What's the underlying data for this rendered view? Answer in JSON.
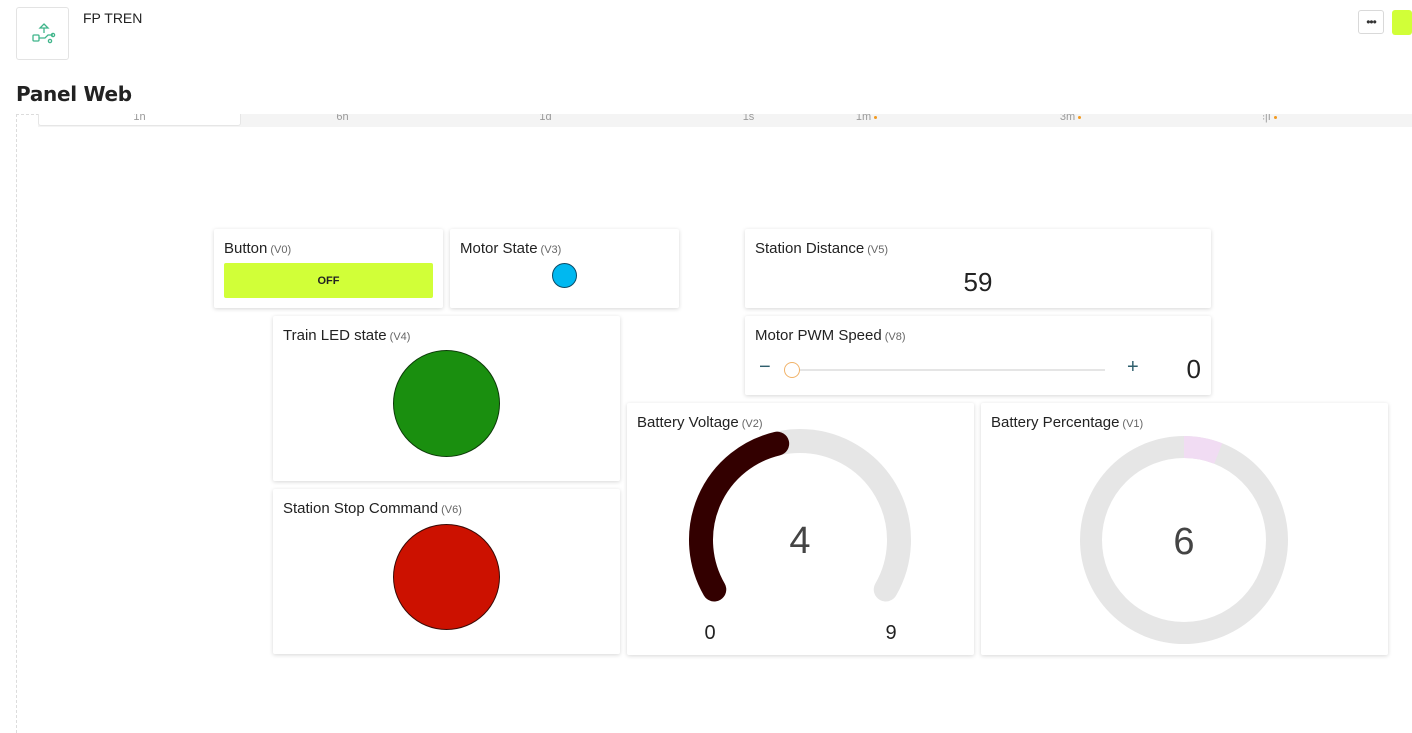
{
  "header": {
    "device_title": "FP TREN",
    "more_label": "•••",
    "page_title": "Panel Web"
  },
  "time_tabs": [
    {
      "label": "1h",
      "active": true,
      "dot": false
    },
    {
      "label": "6h",
      "active": false,
      "dot": false
    },
    {
      "label": "1d",
      "active": false,
      "dot": false
    },
    {
      "label": "1s",
      "active": false,
      "dot": false
    },
    {
      "label": "1m",
      "active": false,
      "dot": true
    },
    {
      "label": "3m",
      "active": false,
      "dot": true
    },
    {
      "label": "⫶|ı",
      "active": false,
      "dot": true
    }
  ],
  "widgets": {
    "button": {
      "title": "Button",
      "pin": "(V0)",
      "state_label": "OFF"
    },
    "motor_state": {
      "title": "Motor State",
      "pin": "(V3)",
      "color": "#00b8f0"
    },
    "station_distance": {
      "title": "Station Distance",
      "pin": "(V5)",
      "value": "59"
    },
    "train_led": {
      "title": "Train LED state",
      "pin": "(V4)",
      "color": "#1a8f0f"
    },
    "motor_pwm": {
      "title": "Motor PWM Speed",
      "pin": "(V8)",
      "minus": "−",
      "plus": "+",
      "value": "0",
      "level": 0
    },
    "station_stop": {
      "title": "Station Stop Command",
      "pin": "(V6)",
      "color": "#cc1100"
    },
    "battery_voltage": {
      "title": "Battery Voltage",
      "pin": "(V2)",
      "value": "4",
      "min": "0",
      "max": "9",
      "value_num": 4,
      "min_num": 0,
      "max_num": 9,
      "color": "#330000"
    },
    "battery_percentage": {
      "title": "Battery Percentage",
      "pin": "(V1)",
      "value": "6",
      "value_num": 6,
      "max_num": 100,
      "color": "#f1dcf3"
    }
  },
  "colors": {
    "accent": "#d1ff38",
    "gauge_track": "#e6e6e6"
  }
}
